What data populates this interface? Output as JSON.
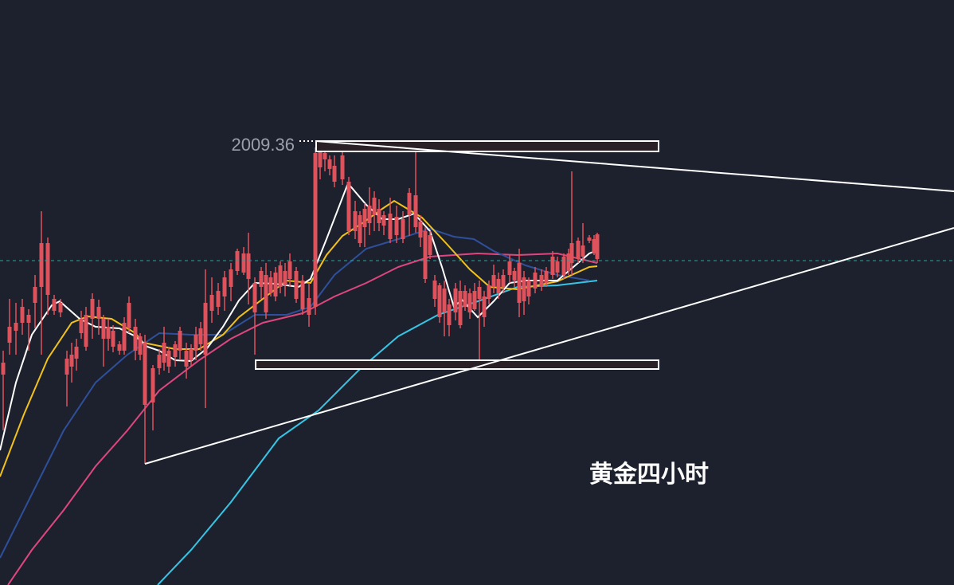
{
  "chart_data": {
    "type": "candlestick",
    "title": "黄金四小时",
    "annotations": {
      "swing_high_label": "2009.36"
    },
    "colors": {
      "background": "#1c212d",
      "up_candle": "#26a69a",
      "down_candle": "#e0525b",
      "trendline": "#ffffff",
      "current_price_line": "#26a69a",
      "ma_white": "#ffffff",
      "ma_yellow": "#f2c21b",
      "ma_navy": "#2f4f9a",
      "ma_pink": "#e0467e",
      "ma_cyan": "#36c5e6",
      "ma_magenta": "#e0467e",
      "box_fill": "#2a2126",
      "box_border": "#ffffff"
    }
  }
}
